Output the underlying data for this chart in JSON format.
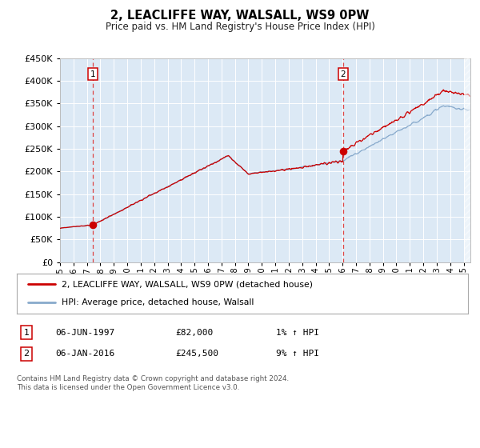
{
  "title": "2, LEACLIFFE WAY, WALSALL, WS9 0PW",
  "subtitle": "Price paid vs. HM Land Registry's House Price Index (HPI)",
  "ylim": [
    0,
    450000
  ],
  "yticks": [
    0,
    50000,
    100000,
    150000,
    200000,
    250000,
    300000,
    350000,
    400000,
    450000
  ],
  "xlim_start": 1995.0,
  "xlim_end": 2025.5,
  "background_color": "#dce9f5",
  "grid_color": "#ffffff",
  "sale1_date": 1997.44,
  "sale1_price": 82000,
  "sale2_date": 2016.03,
  "sale2_price": 245500,
  "legend_line1": "2, LEACLIFFE WAY, WALSALL, WS9 0PW (detached house)",
  "legend_line2": "HPI: Average price, detached house, Walsall",
  "annotation1_date": "06-JUN-1997",
  "annotation1_price": "£82,000",
  "annotation1_hpi": "1% ↑ HPI",
  "annotation2_date": "06-JAN-2016",
  "annotation2_price": "£245,500",
  "annotation2_hpi": "9% ↑ HPI",
  "footer": "Contains HM Land Registry data © Crown copyright and database right 2024.\nThis data is licensed under the Open Government Licence v3.0.",
  "sale_color": "#cc0000",
  "hpi_color": "#88aacc",
  "dashed_color": "#dd4444"
}
